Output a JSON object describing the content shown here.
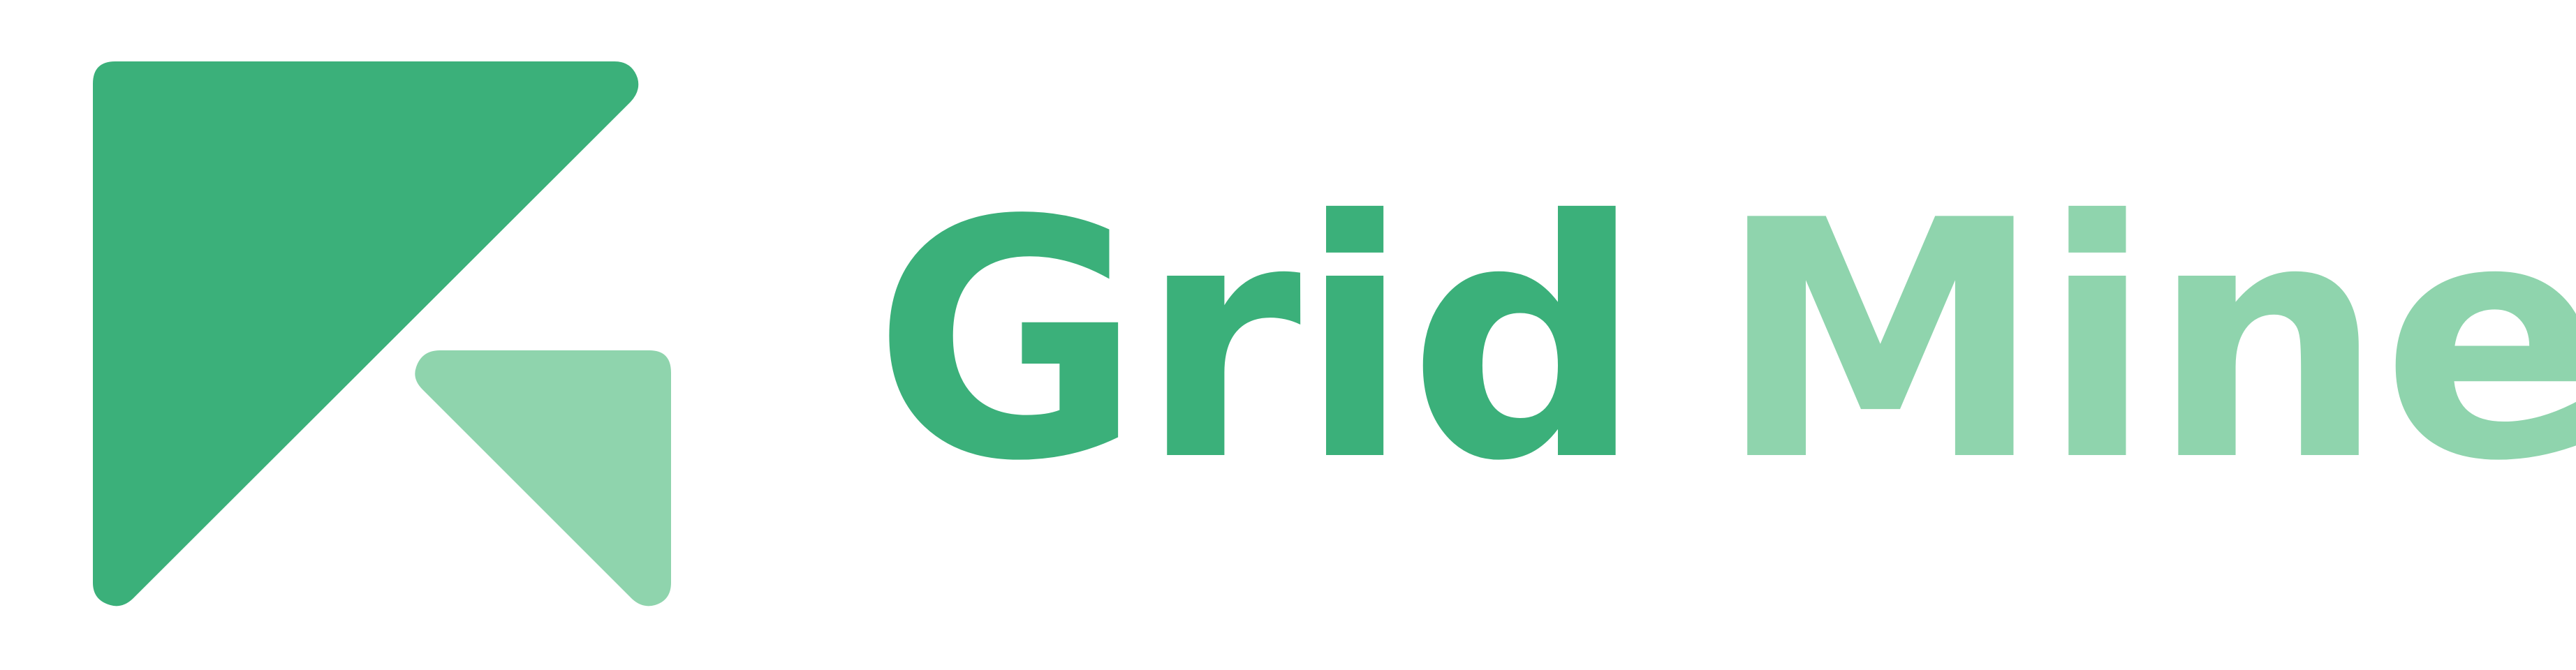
{
  "brand": {
    "word_primary": "Grid",
    "word_secondary": "Mine"
  },
  "colors": {
    "primary": "#3bb07a",
    "secondary": "#8fd4ad",
    "background": "#ffffff"
  }
}
